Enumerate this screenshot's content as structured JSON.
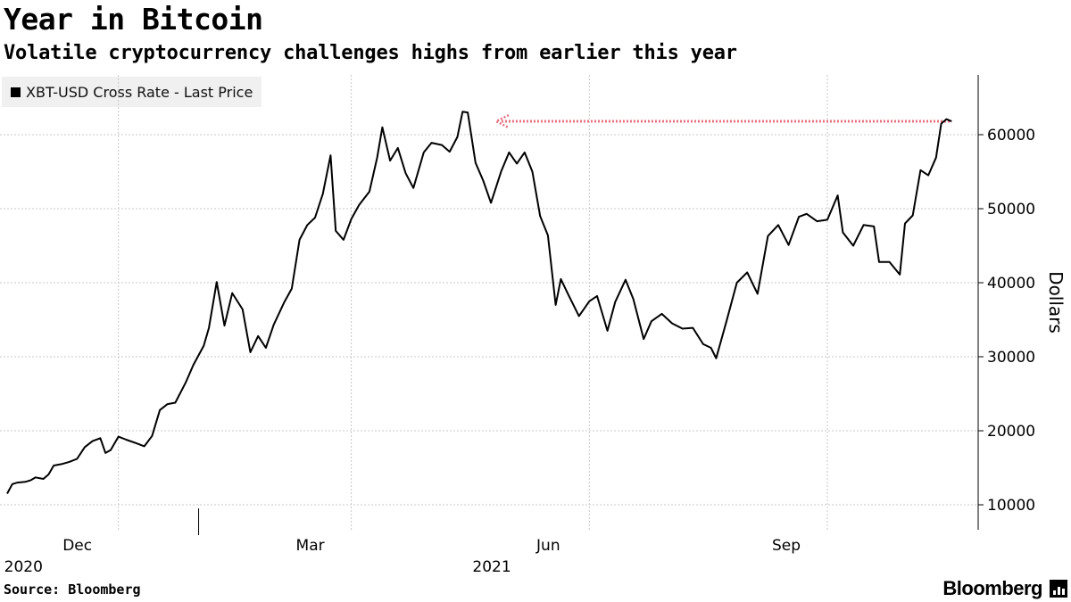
{
  "header": {
    "title": "Year in Bitcoin",
    "subtitle": "Volatile cryptocurrency challenges highs from earlier this year"
  },
  "legend": {
    "label": "XBT-USD Cross Rate - Last Price"
  },
  "footer": {
    "source": "Source: Bloomberg",
    "brand": "Bloomberg"
  },
  "colors": {
    "line": "#000000",
    "reference_arrow": "#e8707f",
    "grid": "#c8c8c8"
  },
  "chart_data": {
    "type": "line",
    "ylabel": "Dollars",
    "ylim": [
      5000,
      68000
    ],
    "yticks": [
      10000,
      20000,
      30000,
      40000,
      50000,
      60000
    ],
    "ytick_labels": [
      "10000",
      "20000",
      "30000",
      "40000",
      "50000",
      "60000"
    ],
    "xlim": [
      "2020-10-19",
      "2021-10-21"
    ],
    "month_ticks": [
      {
        "date": "2020-12-01",
        "label": "Dec"
      },
      {
        "date": "2021-03-01",
        "label": "Mar"
      },
      {
        "date": "2021-06-01",
        "label": "Jun"
      },
      {
        "date": "2021-09-01",
        "label": "Sep"
      }
    ],
    "year_ticks": [
      {
        "date": "2020-11-15",
        "label": "2020"
      },
      {
        "date": "2021-05-15",
        "label": "2021"
      }
    ],
    "grid": true,
    "legend_position": "top-left",
    "reference_line": {
      "from": "2021-04-26",
      "to": "2021-10-19",
      "value": 61800
    },
    "series": [
      {
        "name": "XBT-USD Cross Rate - Last Price",
        "x": [
          "2020-10-19",
          "2020-10-21",
          "2020-10-23",
          "2020-10-26",
          "2020-10-28",
          "2020-10-30",
          "2020-11-02",
          "2020-11-04",
          "2020-11-06",
          "2020-11-09",
          "2020-11-12",
          "2020-11-15",
          "2020-11-18",
          "2020-11-21",
          "2020-11-24",
          "2020-11-26",
          "2020-11-28",
          "2020-12-01",
          "2020-12-04",
          "2020-12-08",
          "2020-12-11",
          "2020-12-14",
          "2020-12-17",
          "2020-12-20",
          "2020-12-23",
          "2020-12-27",
          "2020-12-30",
          "2021-01-03",
          "2021-01-05",
          "2021-01-08",
          "2021-01-11",
          "2021-01-14",
          "2021-01-18",
          "2021-01-21",
          "2021-01-24",
          "2021-01-27",
          "2021-01-30",
          "2021-02-03",
          "2021-02-06",
          "2021-02-09",
          "2021-02-12",
          "2021-02-15",
          "2021-02-18",
          "2021-02-21",
          "2021-02-23",
          "2021-02-26",
          "2021-03-01",
          "2021-03-04",
          "2021-03-08",
          "2021-03-11",
          "2021-03-13",
          "2021-03-16",
          "2021-03-19",
          "2021-03-22",
          "2021-03-25",
          "2021-03-29",
          "2021-04-01",
          "2021-04-05",
          "2021-04-08",
          "2021-04-11",
          "2021-04-13",
          "2021-04-15",
          "2021-04-18",
          "2021-04-21",
          "2021-04-24",
          "2021-04-28",
          "2021-05-01",
          "2021-05-04",
          "2021-05-07",
          "2021-05-10",
          "2021-05-13",
          "2021-05-16",
          "2021-05-19",
          "2021-05-21",
          "2021-05-24",
          "2021-05-28",
          "2021-06-01",
          "2021-06-04",
          "2021-06-08",
          "2021-06-11",
          "2021-06-15",
          "2021-06-18",
          "2021-06-22",
          "2021-06-25",
          "2021-06-29",
          "2021-07-03",
          "2021-07-07",
          "2021-07-11",
          "2021-07-15",
          "2021-07-18",
          "2021-07-20",
          "2021-07-24",
          "2021-07-28",
          "2021-08-01",
          "2021-08-05",
          "2021-08-09",
          "2021-08-13",
          "2021-08-17",
          "2021-08-21",
          "2021-08-24",
          "2021-08-28",
          "2021-09-01",
          "2021-09-05",
          "2021-09-07",
          "2021-09-11",
          "2021-09-15",
          "2021-09-19",
          "2021-09-21",
          "2021-09-25",
          "2021-09-29",
          "2021-10-01",
          "2021-10-04",
          "2021-10-07",
          "2021-10-10",
          "2021-10-13",
          "2021-10-15",
          "2021-10-17",
          "2021-10-19"
        ],
        "values": [
          11500,
          12800,
          13000,
          13100,
          13300,
          13700,
          13500,
          14100,
          15300,
          15500,
          15800,
          16200,
          17800,
          18600,
          19000,
          17000,
          17400,
          19200,
          18800,
          18300,
          17900,
          19300,
          22800,
          23600,
          23800,
          26500,
          28900,
          31500,
          33900,
          40100,
          34200,
          38600,
          36400,
          30600,
          32800,
          31200,
          34300,
          37300,
          39200,
          45800,
          47800,
          48800,
          52000,
          57200,
          47000,
          45800,
          48600,
          50500,
          52300,
          56900,
          61000,
          56500,
          58200,
          54800,
          52800,
          57600,
          58900,
          58600,
          57700,
          59700,
          63100,
          63000,
          56200,
          53800,
          50800,
          55100,
          57600,
          56100,
          57600,
          55000,
          49000,
          46400,
          37000,
          40500,
          38300,
          35500,
          37500,
          38200,
          33500,
          37400,
          40400,
          37800,
          32400,
          34800,
          35800,
          34500,
          33800,
          33900,
          31700,
          31200,
          29800,
          34800,
          40000,
          41400,
          38500,
          46300,
          47800,
          45100,
          48900,
          49300,
          48300,
          48500,
          51800,
          46800,
          45000,
          47800,
          47600,
          42800,
          42800,
          41100,
          48000,
          49100,
          55200,
          54500,
          56900,
          61500,
          62100,
          61800
        ]
      }
    ]
  }
}
